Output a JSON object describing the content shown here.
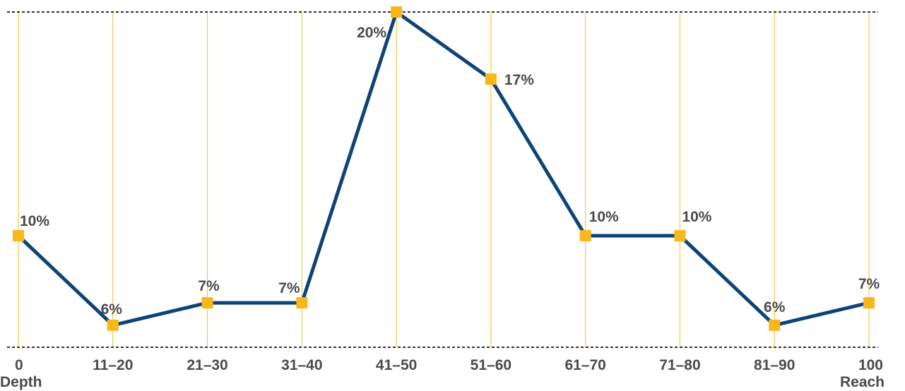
{
  "chart_data": {
    "type": "line",
    "categories": [
      "0",
      "11–20",
      "21–30",
      "31–40",
      "41–50",
      "51–60",
      "61–70",
      "71–80",
      "81–90",
      "100"
    ],
    "series": [
      {
        "values": [
          10,
          6,
          7,
          7,
          20,
          17,
          10,
          10,
          6,
          7
        ]
      }
    ],
    "data_labels": [
      "10%",
      "6%",
      "7%",
      "7%",
      "20%",
      "17%",
      "10%",
      "10%",
      "6%",
      "7%"
    ],
    "x_start_label": "Depth",
    "x_end_label": "Reach",
    "ylim": [
      5,
      20
    ],
    "grid": "vertical",
    "colors": {
      "line": "#0d4477",
      "marker": "#f8b71b",
      "grid": "#f8c64a",
      "rule": "#333333",
      "text": "#4a4a4f"
    }
  }
}
